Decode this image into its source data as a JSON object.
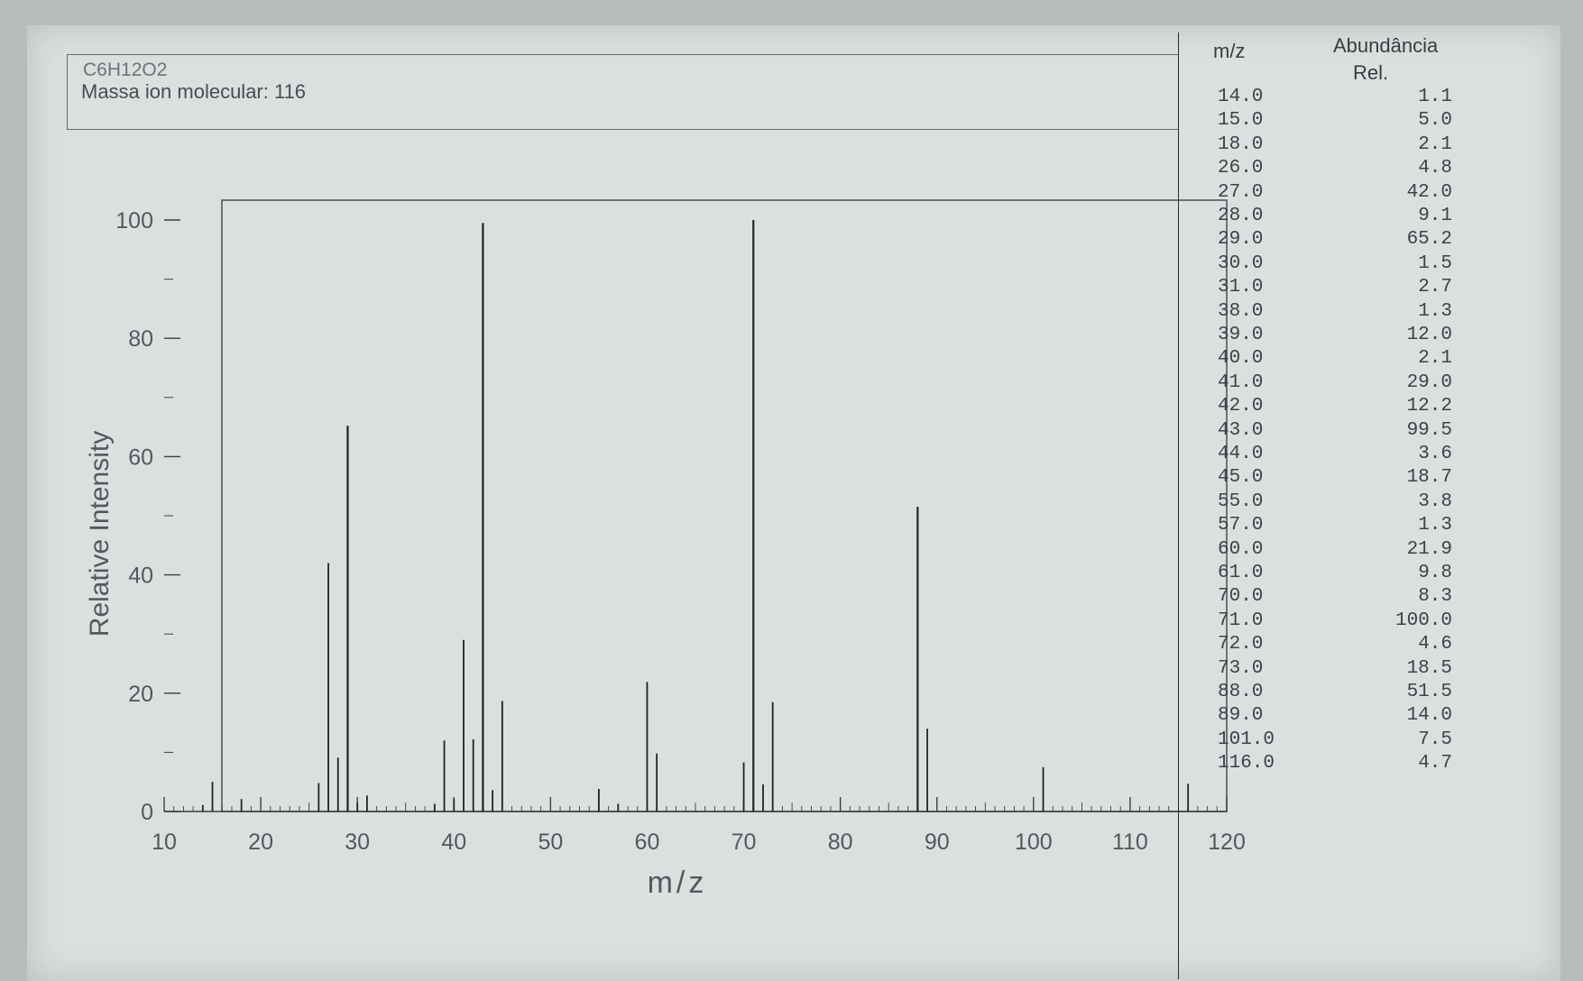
{
  "header": {
    "formula": "C6H12O2",
    "molecular_ion_label": "Massa ion molecular: 116"
  },
  "table": {
    "col1_header": "m/z",
    "col2_header_line1": "Abundância",
    "col2_header_line2": "Rel.",
    "rows": [
      {
        "mz": "14.0",
        "abund": "1.1"
      },
      {
        "mz": "15.0",
        "abund": "5.0"
      },
      {
        "mz": "18.0",
        "abund": "2.1"
      },
      {
        "mz": "26.0",
        "abund": "4.8"
      },
      {
        "mz": "27.0",
        "abund": "42.0"
      },
      {
        "mz": "28.0",
        "abund": "9.1"
      },
      {
        "mz": "29.0",
        "abund": "65.2"
      },
      {
        "mz": "30.0",
        "abund": "1.5"
      },
      {
        "mz": "31.0",
        "abund": "2.7"
      },
      {
        "mz": "38.0",
        "abund": "1.3"
      },
      {
        "mz": "39.0",
        "abund": "12.0"
      },
      {
        "mz": "40.0",
        "abund": "2.1"
      },
      {
        "mz": "41.0",
        "abund": "29.0"
      },
      {
        "mz": "42.0",
        "abund": "12.2"
      },
      {
        "mz": "43.0",
        "abund": "99.5"
      },
      {
        "mz": "44.0",
        "abund": "3.6"
      },
      {
        "mz": "45.0",
        "abund": "18.7"
      },
      {
        "mz": "55.0",
        "abund": "3.8"
      },
      {
        "mz": "57.0",
        "abund": "1.3"
      },
      {
        "mz": "60.0",
        "abund": "21.9"
      },
      {
        "mz": "61.0",
        "abund": "9.8"
      },
      {
        "mz": "70.0",
        "abund": "8.3"
      },
      {
        "mz": "71.0",
        "abund": "100.0"
      },
      {
        "mz": "72.0",
        "abund": "4.6"
      },
      {
        "mz": "73.0",
        "abund": "18.5"
      },
      {
        "mz": "88.0",
        "abund": "51.5"
      },
      {
        "mz": "89.0",
        "abund": "14.0"
      },
      {
        "mz": "101.0",
        "abund": "7.5"
      },
      {
        "mz": "116.0",
        "abund": "4.7"
      }
    ]
  },
  "chart_data": {
    "type": "bar",
    "xlabel": "m/z",
    "ylabel": "Relative Intensity",
    "xlim": [
      10,
      120
    ],
    "ylim": [
      0,
      100
    ],
    "x_ticks": [
      10,
      20,
      30,
      40,
      50,
      60,
      70,
      80,
      90,
      100,
      110,
      120
    ],
    "y_ticks": [
      0,
      20,
      40,
      60,
      80,
      100
    ],
    "x": [
      14,
      15,
      18,
      26,
      27,
      28,
      29,
      30,
      31,
      38,
      39,
      40,
      41,
      42,
      43,
      44,
      45,
      55,
      57,
      60,
      61,
      70,
      71,
      72,
      73,
      88,
      89,
      101,
      116
    ],
    "values": [
      1.1,
      5.0,
      2.1,
      4.8,
      42.0,
      9.1,
      65.2,
      1.5,
      2.7,
      1.3,
      12.0,
      2.1,
      29.0,
      12.2,
      99.5,
      3.6,
      18.7,
      3.8,
      1.3,
      21.9,
      9.8,
      8.3,
      100.0,
      4.6,
      18.5,
      51.5,
      14.0,
      7.5,
      4.7
    ],
    "grid": false,
    "colors": {
      "bars": "#222222",
      "axis": "#3c3e41",
      "text": "#55585b"
    }
  }
}
